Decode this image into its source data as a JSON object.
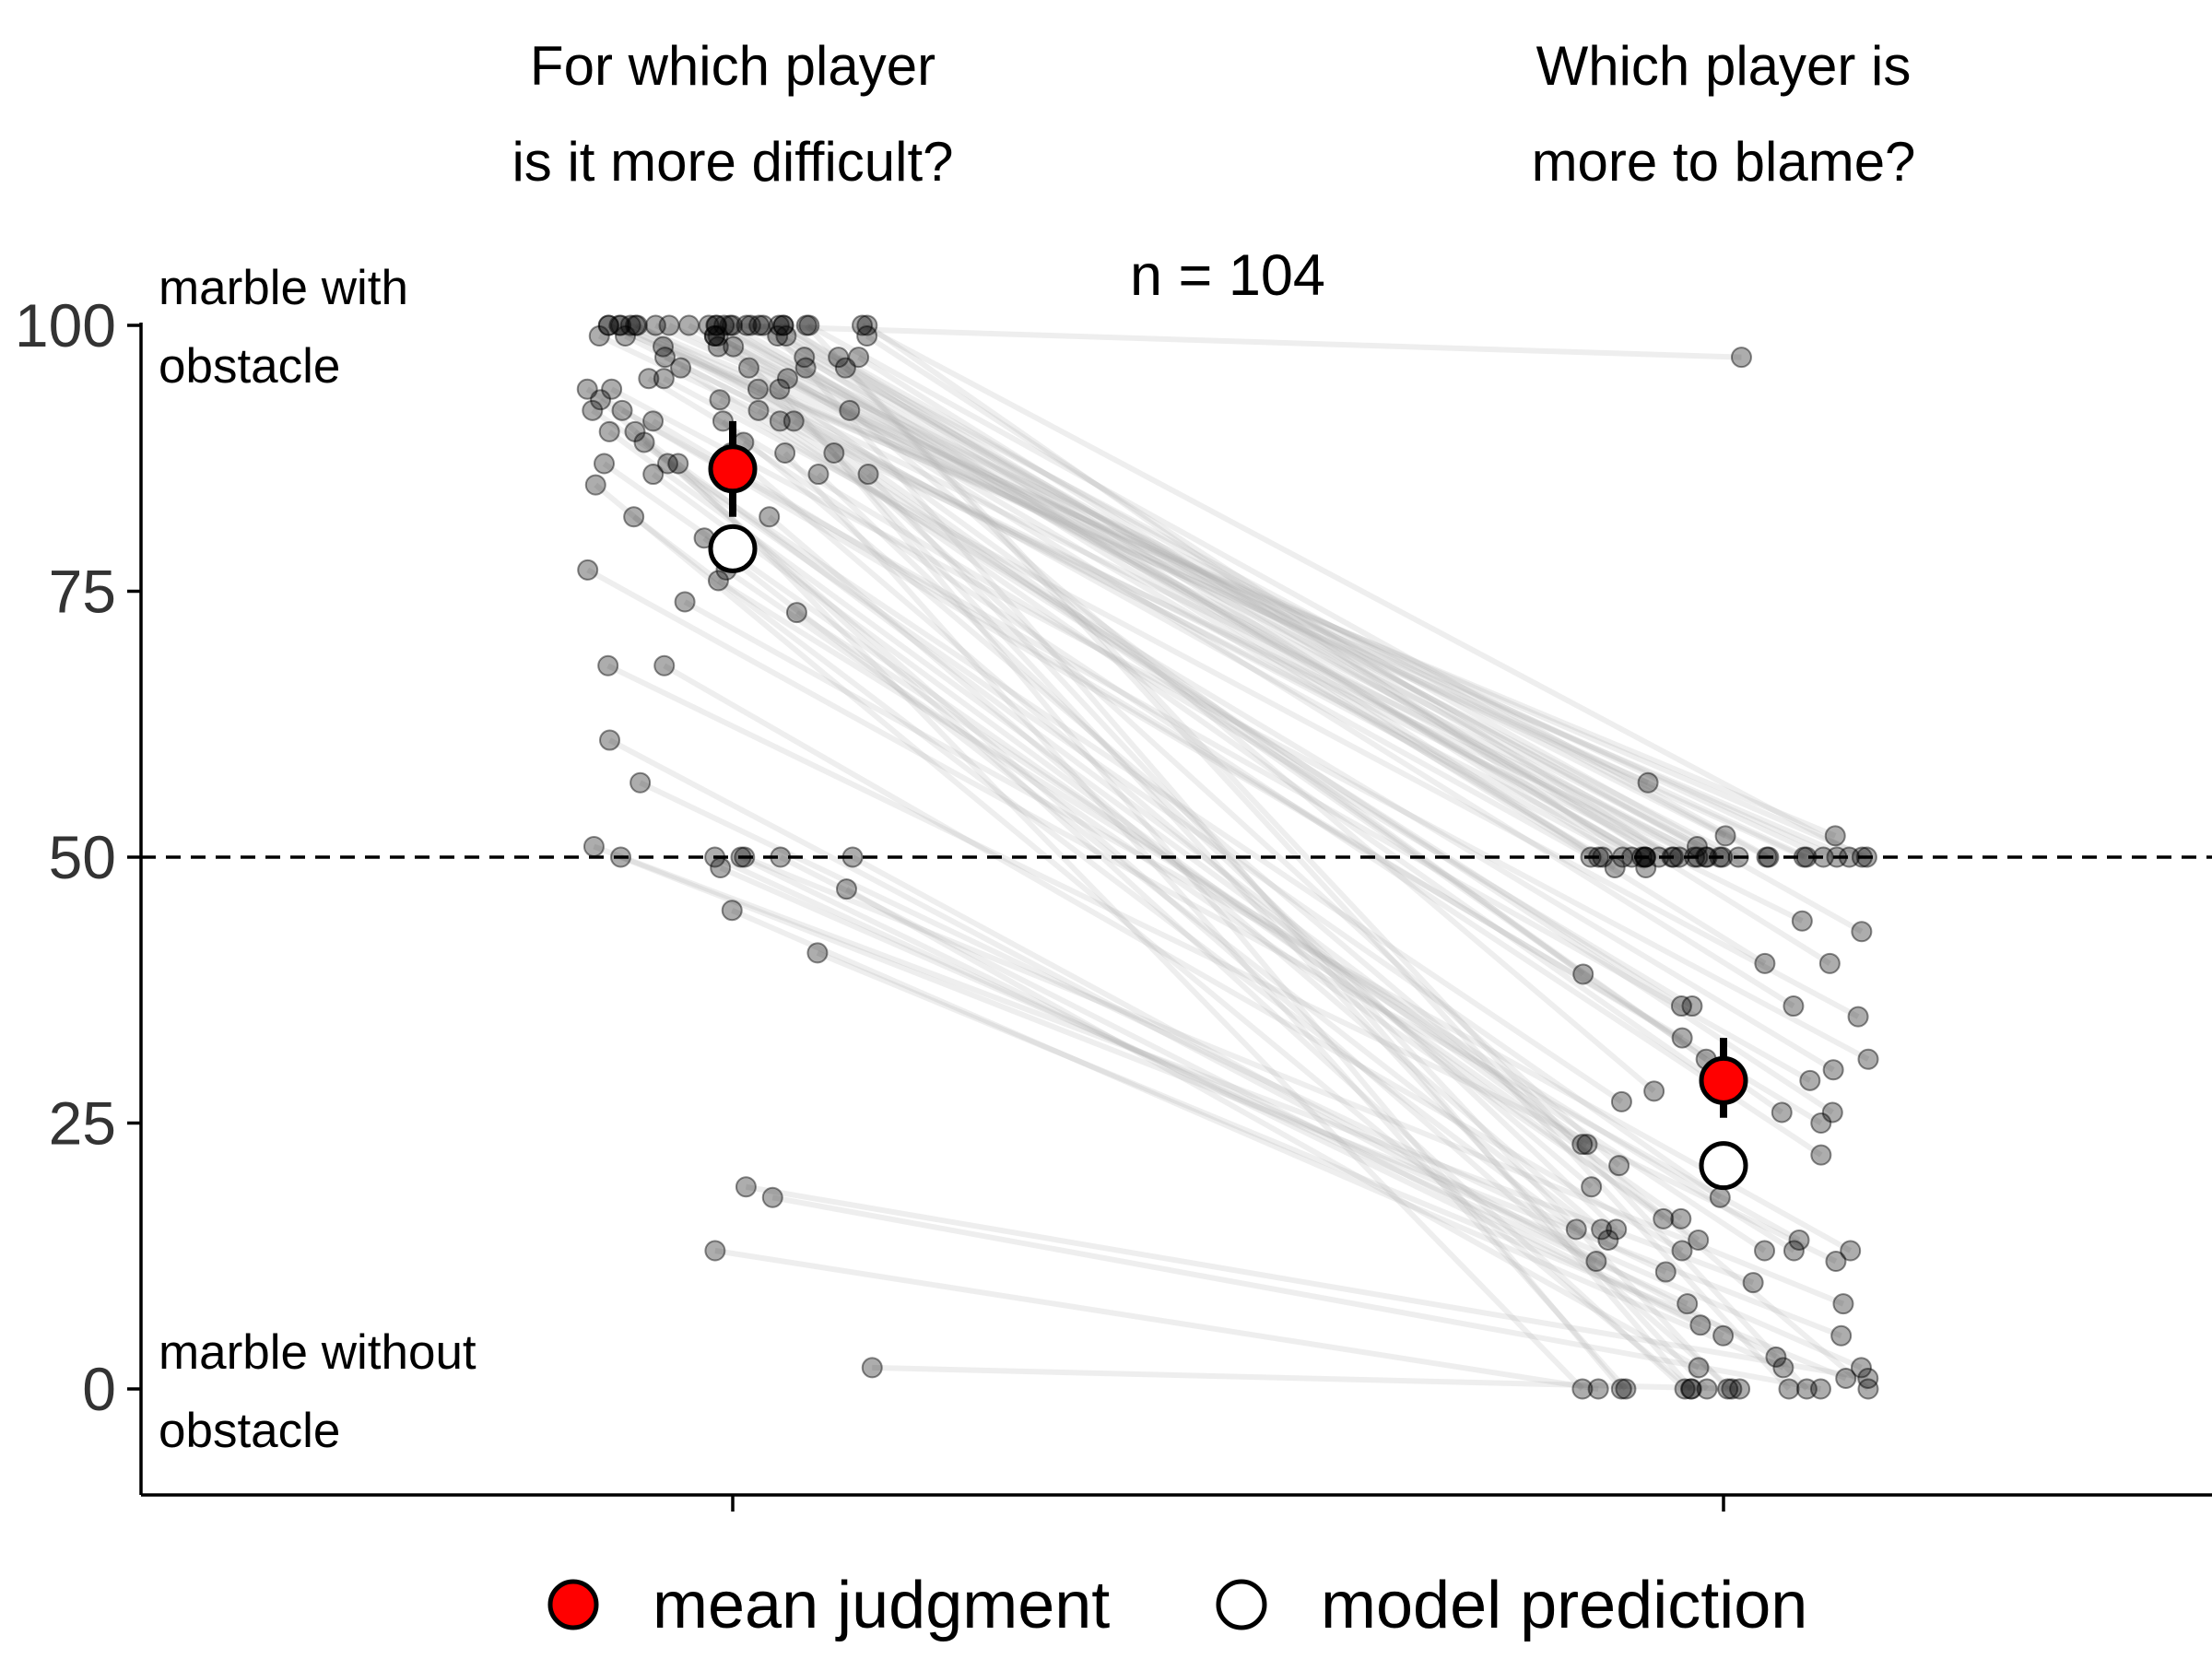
{
  "chart_data": {
    "type": "scatter",
    "panels": [
      "For which player is it more difficult?",
      "Which player is more to blame?"
    ],
    "panel_titles": [
      [
        "For which player",
        "is it more difficult?"
      ],
      [
        "Which player is",
        "more to blame?"
      ]
    ],
    "annotation": "n = 104",
    "y_axis": {
      "ticks": [
        0,
        25,
        50,
        75,
        100
      ],
      "tick_labels": [
        "0",
        "25",
        "50",
        "75",
        "100"
      ],
      "ylim": [
        -10,
        100
      ],
      "top_label": [
        "marble with",
        "obstacle"
      ],
      "bottom_label": [
        "marble without",
        "obstacle"
      ],
      "reference_line": 50
    },
    "individual_points": {
      "difficult": [
        100,
        100,
        100,
        100,
        100,
        100,
        100,
        100,
        100,
        100,
        100,
        100,
        100,
        100,
        100,
        100,
        100,
        100,
        100,
        100,
        100,
        100,
        100,
        100,
        100,
        100,
        99,
        99,
        99,
        99,
        99,
        99,
        99,
        98,
        98,
        97,
        97,
        97,
        97,
        96,
        96,
        96,
        95,
        95,
        95,
        94,
        94,
        94,
        93,
        92,
        92,
        92,
        92,
        91,
        91,
        91,
        90,
        90,
        89,
        88,
        88,
        87,
        87,
        86,
        86,
        82,
        82,
        80,
        77,
        77,
        76,
        74,
        73,
        68,
        68,
        61,
        57,
        51,
        50,
        50,
        50,
        50,
        50,
        50,
        49,
        47,
        45,
        41,
        19,
        18,
        13,
        2,
        99,
        100,
        98,
        96,
        93,
        91,
        94,
        88,
        89,
        87,
        86,
        85
      ],
      "blame": [
        97,
        57,
        52,
        52,
        51,
        50,
        50,
        50,
        50,
        50,
        50,
        50,
        50,
        50,
        50,
        50,
        50,
        50,
        50,
        50,
        50,
        50,
        50,
        50,
        50,
        50,
        50,
        50,
        50,
        50,
        50,
        50,
        50,
        50,
        49,
        49,
        44,
        43,
        40,
        40,
        39,
        36,
        36,
        36,
        35,
        33,
        31,
        31,
        30,
        29,
        29,
        28,
        27,
        26,
        26,
        25,
        23,
        23,
        22,
        21,
        19,
        18,
        16,
        16,
        15,
        15,
        15,
        14,
        14,
        14,
        13,
        13,
        13,
        13,
        12,
        12,
        11,
        10,
        8,
        8,
        6,
        5,
        5,
        3,
        2,
        2,
        2,
        1,
        1,
        0,
        0,
        0,
        0,
        0,
        0,
        0,
        0,
        0,
        0,
        0,
        0,
        0,
        0,
        0
      ]
    },
    "series": [
      {
        "name": "mean judgment",
        "values": [
          86.5,
          29
        ],
        "error": [
          [
            82,
            91
          ],
          [
            25.5,
            33
          ]
        ],
        "color": "#ff0000"
      },
      {
        "name": "model prediction",
        "values": [
          79,
          21
        ],
        "color": "#ffffff"
      }
    ],
    "legend": {
      "placement": "bottom",
      "items": [
        "mean judgment",
        "model prediction"
      ]
    },
    "grid": false
  }
}
